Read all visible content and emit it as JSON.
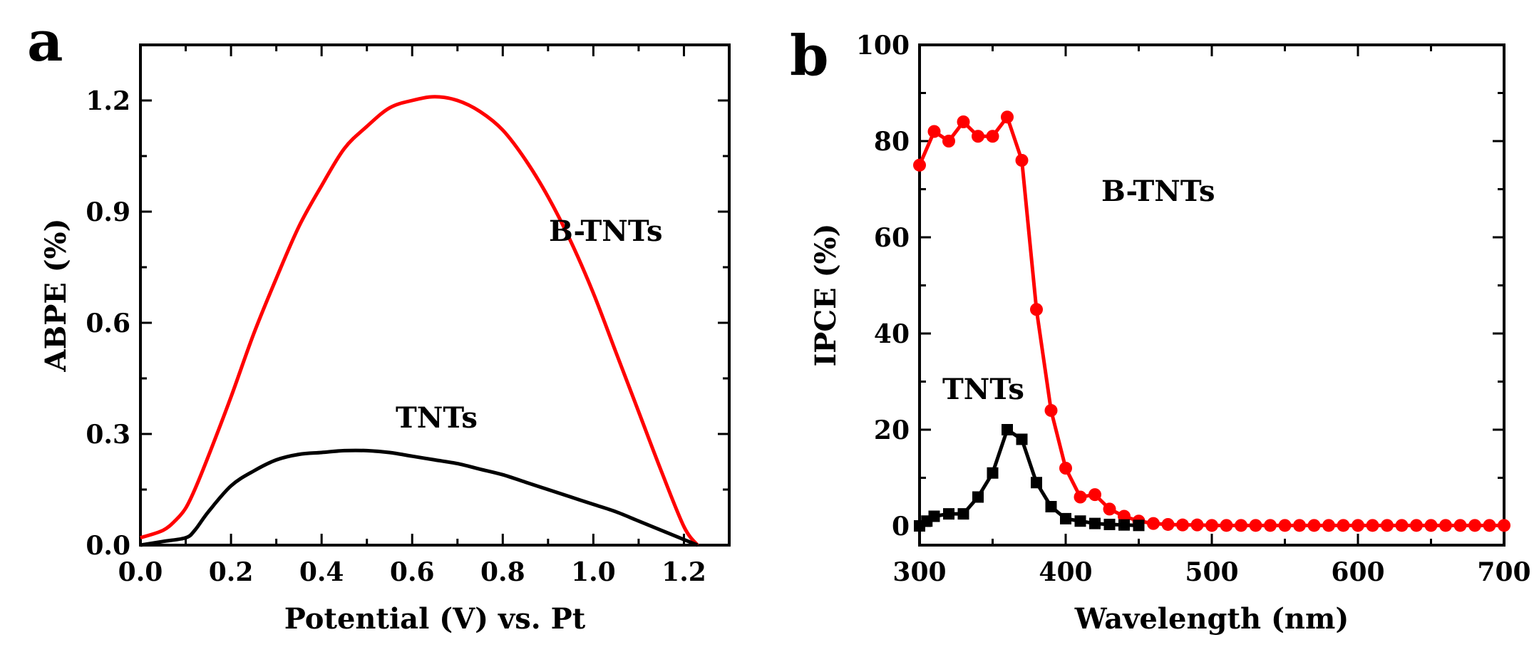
{
  "chart_data": [
    {
      "panel": "a",
      "type": "line",
      "xlabel": "Potential (V) vs. Pt",
      "ylabel": "ABPE (%)",
      "xlim": [
        0.0,
        1.3
      ],
      "ylim": [
        0.0,
        1.35
      ],
      "xticks": [
        "0.0",
        "0.2",
        "0.4",
        "0.6",
        "0.8",
        "1.0",
        "1.2"
      ],
      "yticks": [
        "0.0",
        "0.3",
        "0.6",
        "0.9",
        "1.2"
      ],
      "series": [
        {
          "name": "B-TNTs",
          "color": "#ff0000",
          "x": [
            0.0,
            0.05,
            0.08,
            0.1,
            0.12,
            0.15,
            0.2,
            0.25,
            0.3,
            0.35,
            0.4,
            0.45,
            0.5,
            0.55,
            0.6,
            0.65,
            0.7,
            0.75,
            0.8,
            0.85,
            0.9,
            0.95,
            1.0,
            1.05,
            1.1,
            1.15,
            1.2,
            1.23
          ],
          "y": [
            0.02,
            0.04,
            0.07,
            0.1,
            0.15,
            0.24,
            0.4,
            0.57,
            0.72,
            0.86,
            0.97,
            1.07,
            1.13,
            1.18,
            1.2,
            1.21,
            1.2,
            1.17,
            1.12,
            1.04,
            0.94,
            0.82,
            0.68,
            0.52,
            0.36,
            0.2,
            0.05,
            0.0
          ]
        },
        {
          "name": "TNTs",
          "color": "#000000",
          "x": [
            0.0,
            0.05,
            0.1,
            0.12,
            0.15,
            0.2,
            0.25,
            0.3,
            0.35,
            0.4,
            0.45,
            0.5,
            0.55,
            0.6,
            0.65,
            0.7,
            0.75,
            0.8,
            0.85,
            0.9,
            0.95,
            1.0,
            1.05,
            1.1,
            1.15,
            1.2,
            1.23
          ],
          "y": [
            0.0,
            0.01,
            0.02,
            0.04,
            0.09,
            0.16,
            0.2,
            0.23,
            0.245,
            0.25,
            0.255,
            0.255,
            0.25,
            0.24,
            0.23,
            0.22,
            0.205,
            0.19,
            0.17,
            0.15,
            0.13,
            0.11,
            0.09,
            0.065,
            0.04,
            0.015,
            0.0
          ]
        }
      ],
      "annotations": [
        "B-TNTs",
        "TNTs"
      ]
    },
    {
      "panel": "b",
      "type": "line",
      "xlabel": "Wavelength (nm)",
      "ylabel": "IPCE (%)",
      "xlim": [
        300,
        700
      ],
      "ylim": [
        -4,
        100
      ],
      "xticks": [
        "300",
        "400",
        "500",
        "600",
        "700"
      ],
      "yticks": [
        "0",
        "20",
        "40",
        "60",
        "80",
        "100"
      ],
      "series": [
        {
          "name": "B-TNTs",
          "color": "#ff0000",
          "marker": "circle",
          "x": [
            300,
            310,
            320,
            330,
            340,
            350,
            360,
            370,
            380,
            390,
            400,
            410,
            420,
            430,
            440,
            450,
            460,
            470,
            480,
            490,
            500,
            510,
            520,
            530,
            540,
            550,
            560,
            570,
            580,
            590,
            600,
            610,
            620,
            630,
            640,
            650,
            660,
            670,
            680,
            690,
            700
          ],
          "y": [
            75,
            82,
            80,
            84,
            81,
            81,
            85,
            76,
            45,
            24,
            12,
            6,
            6.5,
            3.5,
            2,
            1,
            0.5,
            0.3,
            0.2,
            0.2,
            0.1,
            0.1,
            0.1,
            0.1,
            0.1,
            0.1,
            0.1,
            0.1,
            0.1,
            0.1,
            0.1,
            0.1,
            0.1,
            0.1,
            0.1,
            0.1,
            0.1,
            0.1,
            0.1,
            0.1,
            0.1
          ]
        },
        {
          "name": "TNTs",
          "color": "#000000",
          "marker": "square",
          "x": [
            300,
            305,
            310,
            320,
            330,
            340,
            350,
            360,
            370,
            380,
            390,
            400,
            410,
            420,
            430,
            440,
            450
          ],
          "y": [
            0,
            1,
            2,
            2.5,
            2.5,
            6,
            11,
            20,
            18,
            9,
            4,
            1.5,
            1,
            0.5,
            0.3,
            0.2,
            0.1
          ]
        }
      ],
      "annotations": [
        "B-TNTs",
        "TNTs"
      ]
    }
  ]
}
